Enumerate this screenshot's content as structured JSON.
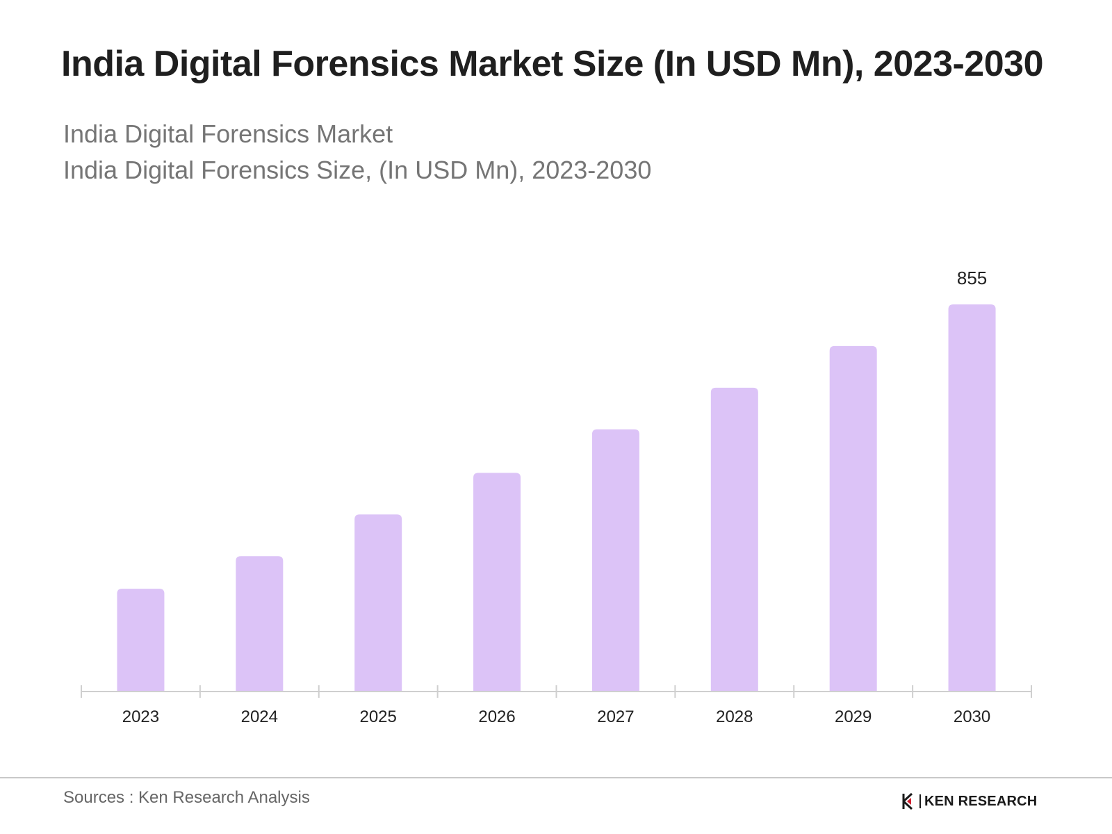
{
  "header": {
    "title": "India Digital Forensics Market Size (In USD Mn), 2023-2030",
    "subtitle_line1": "India Digital Forensics Market",
    "subtitle_line2": "India Digital Forensics Size, (In USD Mn), 2023-2030"
  },
  "footer": {
    "source": "Sources : Ken Research Analysis",
    "logo_text": "KEN RESEARCH",
    "logo_letter": "K"
  },
  "colors": {
    "bar": "#dcc3f7",
    "axis": "#cfcfcf",
    "text": "#222222",
    "logo_accent": "#d11f2f"
  },
  "chart_data": {
    "type": "bar",
    "title": "India Digital Forensics Market Size (In USD Mn), 2023-2030",
    "xlabel": "",
    "ylabel": "",
    "categories": [
      "2023",
      "2024",
      "2025",
      "2026",
      "2027",
      "2028",
      "2029",
      "2030"
    ],
    "values": [
      227,
      299,
      391,
      483,
      579,
      671,
      763,
      855
    ],
    "data_labels": [
      {
        "category": "2030",
        "text": "855"
      }
    ],
    "ylim": [
      0,
      855
    ],
    "grid": false,
    "legend": "none"
  }
}
